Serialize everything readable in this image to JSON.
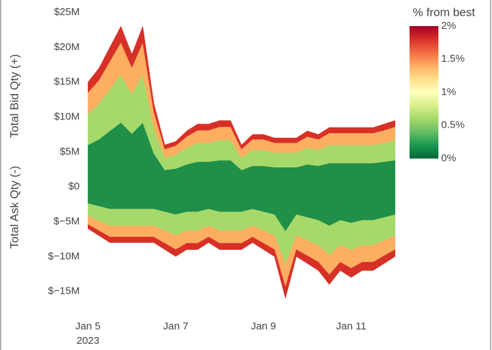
{
  "chart_data": {
    "type": "area",
    "y_label_bid": "Total Bid Qty (+)",
    "y_label_ask": "Total Ask Qty (-)",
    "x_year_label": "2023",
    "x": [
      "2023-01-05 00:00",
      "2023-01-05 06:00",
      "2023-01-05 12:00",
      "2023-01-05 18:00",
      "2023-01-06 00:00",
      "2023-01-06 06:00",
      "2023-01-06 12:00",
      "2023-01-06 18:00",
      "2023-01-07 00:00",
      "2023-01-07 06:00",
      "2023-01-07 12:00",
      "2023-01-07 18:00",
      "2023-01-08 00:00",
      "2023-01-08 06:00",
      "2023-01-08 12:00",
      "2023-01-08 18:00",
      "2023-01-09 00:00",
      "2023-01-09 06:00",
      "2023-01-09 12:00",
      "2023-01-09 18:00",
      "2023-01-10 00:00",
      "2023-01-10 06:00",
      "2023-01-10 12:00",
      "2023-01-10 18:00",
      "2023-01-11 00:00",
      "2023-01-11 06:00",
      "2023-01-11 12:00",
      "2023-01-11 18:00",
      "2023-01-12 00:00"
    ],
    "xlim": [
      "2023-01-05 00:00",
      "2023-01-12 00:00"
    ],
    "xticks": [
      {
        "value": "2023-01-05",
        "label": "Jan 5"
      },
      {
        "value": "2023-01-07",
        "label": "Jan 7"
      },
      {
        "value": "2023-01-09",
        "label": "Jan 9"
      },
      {
        "value": "2023-01-11",
        "label": "Jan 11"
      }
    ],
    "ylim": [
      -17,
      25
    ],
    "yticks": [
      {
        "value": 25,
        "label": "$25M"
      },
      {
        "value": 20,
        "label": "$20M"
      },
      {
        "value": 15,
        "label": "$15M"
      },
      {
        "value": 10,
        "label": "$10M"
      },
      {
        "value": 5,
        "label": "$5M"
      },
      {
        "value": 0,
        "label": "$0"
      },
      {
        "value": -5,
        "label": "$−5M"
      },
      {
        "value": -10,
        "label": "$−10M"
      },
      {
        "value": -15,
        "label": "$−15M"
      }
    ],
    "bid_series": [
      {
        "color": "#1f8f4a",
        "values": [
          6,
          6.8,
          8,
          9.2,
          7.6,
          9.2,
          4.8,
          2.4,
          2.6,
          3.2,
          3.6,
          3.6,
          3.8,
          3.8,
          2.4,
          3,
          3,
          2.8,
          2.8,
          2.8,
          3.2,
          3,
          3.4,
          3.4,
          3.4,
          3.4,
          3.4,
          3.6,
          3.8
        ]
      },
      {
        "color": "#a6d96a",
        "values": [
          4.5,
          5.1,
          6,
          6.9,
          5.7,
          6.9,
          3.6,
          1.8,
          2,
          2.4,
          2.7,
          2.7,
          2.9,
          2.9,
          1.8,
          2.3,
          2.3,
          2.1,
          2.1,
          2.1,
          2.4,
          2.3,
          2.6,
          2.6,
          2.6,
          2.6,
          2.6,
          2.7,
          2.9
        ]
      },
      {
        "color": "#fdae61",
        "values": [
          3,
          3.4,
          4,
          4.6,
          3.8,
          4.6,
          2.4,
          1.2,
          1.3,
          1.6,
          1.8,
          1.8,
          1.9,
          1.9,
          1.2,
          1.5,
          1.5,
          1.4,
          1.4,
          1.4,
          1.6,
          1.5,
          1.7,
          1.7,
          1.7,
          1.7,
          1.7,
          1.8,
          1.9
        ]
      },
      {
        "color": "#d73027",
        "values": [
          1.5,
          1.7,
          2,
          2.3,
          1.9,
          2.3,
          1.2,
          0.6,
          0.6,
          0.8,
          0.9,
          0.9,
          0.9,
          0.9,
          0.6,
          0.7,
          0.7,
          0.7,
          0.7,
          0.7,
          0.8,
          0.7,
          0.8,
          0.8,
          0.8,
          0.8,
          0.8,
          0.9,
          0.9
        ]
      }
    ],
    "ask_series": [
      {
        "color": "#1f8f4a",
        "values": [
          -2.4,
          -2.8,
          -3.2,
          -3.2,
          -3.2,
          -3.2,
          -3.2,
          -3.6,
          -4,
          -3.6,
          -3.6,
          -3.2,
          -3.6,
          -3.6,
          -3.6,
          -3.2,
          -3.6,
          -4,
          -6.4,
          -4,
          -4.4,
          -4.8,
          -5.6,
          -4.8,
          -5.2,
          -4.8,
          -4.8,
          -4.4,
          -4
        ]
      },
      {
        "color": "#a6d96a",
        "values": [
          -1.8,
          -2.1,
          -2.4,
          -2.4,
          -2.4,
          -2.4,
          -2.4,
          -2.7,
          -3,
          -2.7,
          -2.7,
          -2.4,
          -2.7,
          -2.7,
          -2.7,
          -2.4,
          -2.7,
          -3,
          -4.8,
          -3,
          -3.3,
          -3.6,
          -4.2,
          -3.6,
          -3.9,
          -3.6,
          -3.6,
          -3.3,
          -3
        ]
      },
      {
        "color": "#fdae61",
        "values": [
          -1.2,
          -1.4,
          -1.6,
          -1.6,
          -1.6,
          -1.6,
          -1.6,
          -1.8,
          -2,
          -1.8,
          -1.8,
          -1.6,
          -1.8,
          -1.8,
          -1.8,
          -1.6,
          -1.8,
          -2,
          -3.2,
          -2,
          -2.2,
          -2.4,
          -2.8,
          -2.4,
          -2.6,
          -2.4,
          -2.4,
          -2.2,
          -2
        ]
      },
      {
        "color": "#d73027",
        "values": [
          -0.6,
          -0.7,
          -0.8,
          -0.8,
          -0.8,
          -0.8,
          -0.8,
          -0.9,
          -1,
          -0.9,
          -0.9,
          -0.8,
          -0.9,
          -0.9,
          -0.9,
          -0.8,
          -0.9,
          -1,
          -1.6,
          -1,
          -1.1,
          -1.2,
          -1.4,
          -1.2,
          -1.3,
          -1.2,
          -1.2,
          -1.1,
          -1
        ]
      }
    ],
    "colorbar": {
      "title": "% from best",
      "lim": [
        0,
        2
      ],
      "ticks": [
        {
          "value": 0,
          "label": "0%"
        },
        {
          "value": 0.5,
          "label": "0.5%"
        },
        {
          "value": 1,
          "label": "1%"
        },
        {
          "value": 1.5,
          "label": "1.5%"
        },
        {
          "value": 2,
          "label": "2%"
        }
      ],
      "colorscale": [
        "#006837",
        "#1a9850",
        "#66bd63",
        "#a6d96a",
        "#d9ef8b",
        "#ffffbf",
        "#fee08b",
        "#fdae61",
        "#f46d43",
        "#d73027",
        "#a50026"
      ]
    }
  }
}
